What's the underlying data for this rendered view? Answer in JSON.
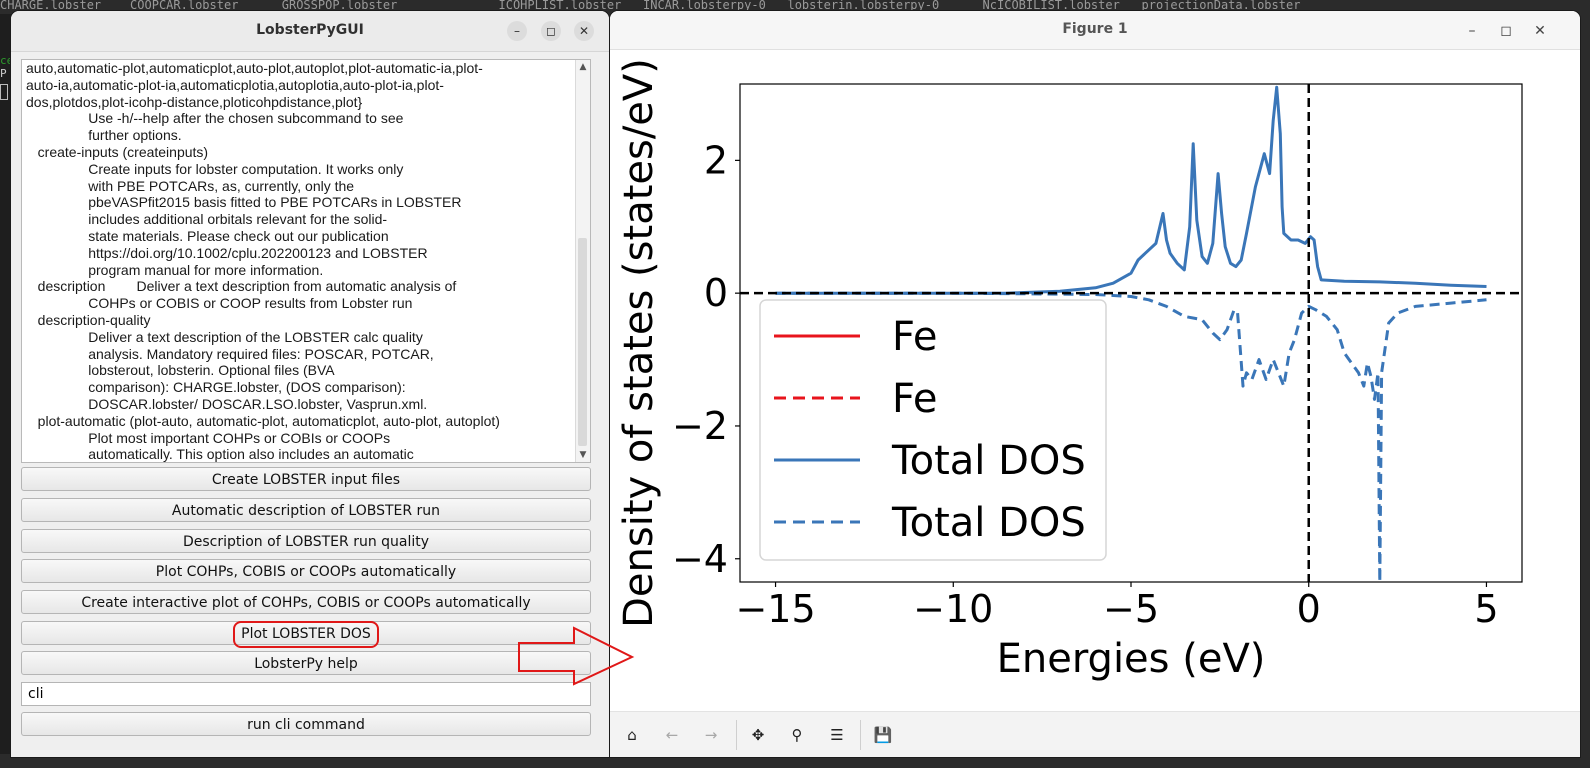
{
  "background_terminal": {
    "top_line": "CHARGE.lobster    COOPCAR.lobster      GROSSPOP.lobster              ICOHPLIST.lobster   INCAR.lobsterpy-0   lobsterin.lobsterpy-0      NcICOBILIST.lobster   projectionData.lobster",
    "fragments": [
      "ce",
      "P"
    ]
  },
  "gui": {
    "title": "LobsterPyGUI",
    "help_lines": [
      "auto,automatic-plot,automaticplot,auto-plot,autoplot,plot-automatic-ia,plot-",
      "auto-ia,automatic-plot-ia,automaticplotia,autoplotia,auto-plot-ia,plot-",
      "dos,plotdos,plot-icohp-distance,ploticohpdistance,plot}",
      "                Use -h/--help after the chosen subcommand to see",
      "                further options.",
      "   create-inputs (createinputs)",
      "                Create inputs for lobster computation. It works only",
      "                with PBE POTCARs, as, currently, only the",
      "                pbeVASPfit2015 basis fitted to PBE POTCARs in LOBSTER",
      "                includes additional orbitals relevant for the solid-",
      "                state materials. Please check out our publication",
      "                https://doi.org/10.1002/cplu.202200123 and LOBSTER",
      "                program manual for more information.",
      "   description        Deliver a text description from automatic analysis of",
      "                COHPs or COBIS or COOP results from Lobster run",
      "   description-quality",
      "                Deliver a text description of the LOBSTER calc quality",
      "                analysis. Mandatory required files: POSCAR, POTCAR,",
      "                lobsterout, lobsterin. Optional files (BVA",
      "                comparison): CHARGE.lobster, (DOS comparison):",
      "                DOSCAR.lobster/ DOSCAR.LSO.lobster, Vasprun.xml.",
      "   plot-automatic (plot-auto, automatic-plot, automaticplot, auto-plot, autoplot)",
      "                Plot most important COHPs or COBIs or COOPs",
      "                automatically. This option also includes an automatic"
    ],
    "buttons": [
      "Create LOBSTER input files",
      "Automatic description of LOBSTER run",
      "Description of LOBSTER run quality",
      "Plot COHPs, COBIS or COOPs automatically",
      "Create interactive plot of COHPs, COBIS or COOPs automatically",
      "Plot LOBSTER DOS",
      "LobsterPy help"
    ],
    "highlighted_button": "Plot LOBSTER DOS",
    "cli_input_value": "cli",
    "run_button": "run cli command"
  },
  "figure": {
    "title": "Figure 1",
    "toolbar_icons": [
      "home-icon",
      "back-icon",
      "forward-icon",
      "pan-icon",
      "zoom-icon",
      "configure-icon",
      "save-icon"
    ]
  },
  "colors": {
    "fe": "#e8141c",
    "total": "#3a76b8",
    "highlight": "#e01818"
  },
  "chart_data": {
    "type": "line",
    "xlabel": "Energies (eV)",
    "ylabel": "Density of states (states/eV)",
    "xlim": [
      -16,
      6
    ],
    "ylim": [
      -4.35,
      3.15
    ],
    "xticks": [
      -15,
      -10,
      -5,
      0,
      5
    ],
    "yticks": [
      -4,
      -2,
      0,
      2
    ],
    "xtick_labels": [
      "−15",
      "−10",
      "−5",
      "0",
      "5"
    ],
    "ytick_labels": [
      "−4",
      "−2",
      "0",
      "2"
    ],
    "legend_position": "lower-left",
    "reference_lines": {
      "x": 0,
      "y": 0,
      "style": "dashed"
    },
    "series": [
      {
        "name": "Fe",
        "style": "solid",
        "color": "#e8141c",
        "x": [],
        "y": []
      },
      {
        "name": "Fe",
        "style": "dashed",
        "color": "#e8141c",
        "x": [],
        "y": []
      },
      {
        "name": "Total DOS",
        "style": "solid",
        "color": "#3a76b8",
        "x": [
          -15,
          -12,
          -10,
          -8.5,
          -8,
          -7,
          -6,
          -5.5,
          -5,
          -4.8,
          -4.6,
          -4.3,
          -4.1,
          -4.0,
          -3.9,
          -3.7,
          -3.5,
          -3.35,
          -3.25,
          -3.15,
          -3.0,
          -2.85,
          -2.7,
          -2.55,
          -2.45,
          -2.35,
          -2.2,
          -2.05,
          -1.9,
          -1.75,
          -1.5,
          -1.25,
          -1.1,
          -1.0,
          -0.9,
          -0.8,
          -0.75,
          -0.7,
          -0.5,
          -0.3,
          -0.1,
          0.05,
          0.15,
          0.25,
          0.35,
          1.0,
          2.0,
          3.0,
          4.0,
          5.0
        ],
        "y": [
          0.0,
          0.0,
          0.0,
          0.0,
          0.01,
          0.03,
          0.08,
          0.15,
          0.3,
          0.5,
          0.6,
          0.75,
          1.2,
          0.8,
          0.6,
          0.45,
          0.35,
          1.0,
          2.25,
          1.1,
          0.55,
          0.45,
          0.75,
          1.8,
          1.2,
          0.7,
          0.45,
          0.4,
          0.5,
          0.9,
          1.6,
          2.1,
          1.8,
          2.6,
          3.1,
          2.4,
          1.3,
          0.9,
          0.8,
          0.8,
          0.75,
          0.85,
          0.8,
          0.4,
          0.2,
          0.18,
          0.17,
          0.15,
          0.12,
          0.1
        ]
      },
      {
        "name": "Total DOS",
        "style": "dashed",
        "color": "#3a76b8",
        "x": [
          -15,
          -10,
          -8,
          -6,
          -5,
          -4.5,
          -4,
          -3.5,
          -3,
          -2.7,
          -2.5,
          -2.3,
          -2.1,
          -2.0,
          -1.85,
          -1.75,
          -1.6,
          -1.4,
          -1.2,
          -1.0,
          -0.85,
          -0.7,
          -0.55,
          -0.4,
          -0.2,
          0.0,
          0.2,
          0.5,
          0.8,
          1.0,
          1.2,
          1.4,
          1.55,
          1.65,
          1.75,
          1.85,
          1.95,
          2.0,
          2.05,
          2.25,
          2.5,
          3.0,
          4.0,
          5.0
        ],
        "y": [
          0.0,
          0.0,
          -0.01,
          -0.02,
          -0.05,
          -0.1,
          -0.2,
          -0.35,
          -0.4,
          -0.6,
          -0.7,
          -0.55,
          -0.25,
          -0.3,
          -1.4,
          -1.2,
          -1.3,
          -1.0,
          -1.3,
          -1.0,
          -1.2,
          -1.4,
          -0.9,
          -0.7,
          -0.3,
          -0.2,
          -0.25,
          -0.35,
          -0.55,
          -0.9,
          -1.05,
          -1.2,
          -1.4,
          -1.05,
          -1.25,
          -1.6,
          -1.2,
          -4.35,
          -1.2,
          -0.45,
          -0.3,
          -0.2,
          -0.15,
          -0.1
        ]
      }
    ]
  }
}
